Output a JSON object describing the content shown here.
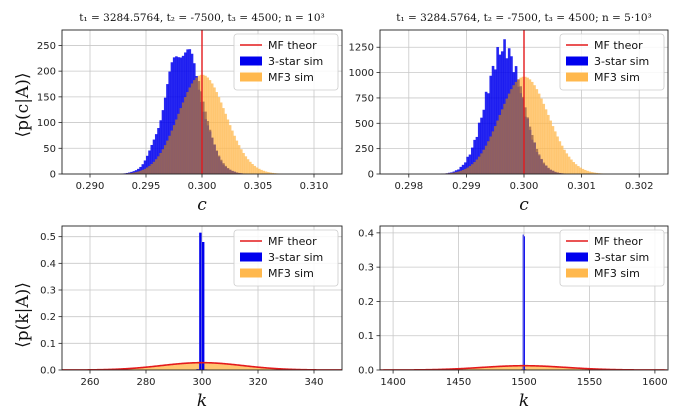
{
  "y_labels": {
    "top": "⟨p(c|A)⟩",
    "bottom": "⟨p(k|A)⟩"
  },
  "colors": {
    "theor": "#e41a1c",
    "sim3": "#0000ee",
    "mf3": "#ffb84d",
    "grid": "#c8c8c8"
  },
  "legend_labels": [
    "MF theor",
    "3-star sim",
    "MF3 sim"
  ],
  "chart_data": [
    {
      "type": "bar",
      "title": "t₁ = 3284.5764,  t₂ = -7500,  t₃ = 4500;  n = 10³",
      "xlabel": "c",
      "ylabel": "⟨p(c|A)⟩",
      "xlim": [
        0.2875,
        0.3125
      ],
      "ylim": [
        0,
        280
      ],
      "xticks": [
        0.29,
        0.295,
        0.3,
        0.305,
        0.31
      ],
      "xtick_labels": [
        "0.290",
        "0.295",
        "0.300",
        "0.305",
        "0.310"
      ],
      "yticks": [
        0,
        50,
        100,
        150,
        200,
        250
      ],
      "ytick_labels": [
        "0",
        "50",
        "100",
        "150",
        "200",
        "250"
      ],
      "grid": true,
      "legend_position": "top-right",
      "series": [
        {
          "name": "MF theor",
          "kind": "vline",
          "x": 0.3
        },
        {
          "name": "3-star sim",
          "kind": "dist",
          "mean": 0.2983,
          "sd": 0.0016,
          "peak": 265,
          "bin": 0.0002
        },
        {
          "name": "MF3 sim",
          "kind": "dist",
          "mean": 0.3,
          "sd": 0.0021,
          "peak": 193,
          "bin": 0.0002
        }
      ]
    },
    {
      "type": "bar",
      "title": "t₁ = 3284.5764,  t₂ = -7500,  t₃ = 4500;  n = 5·10³",
      "xlabel": "c",
      "ylabel": "",
      "xlim": [
        0.2975,
        0.3025
      ],
      "ylim": [
        0,
        1420
      ],
      "xticks": [
        0.298,
        0.299,
        0.3,
        0.301,
        0.302
      ],
      "xtick_labels": [
        "0.298",
        "0.299",
        "0.300",
        "0.301",
        "0.302"
      ],
      "yticks": [
        0,
        250,
        500,
        750,
        1000,
        1250
      ],
      "ytick_labels": [
        "0",
        "250",
        "500",
        "750",
        "1000",
        "1250"
      ],
      "grid": true,
      "legend_position": "top-right",
      "series": [
        {
          "name": "MF theor",
          "kind": "vline",
          "x": 0.3
        },
        {
          "name": "3-star sim",
          "kind": "dist",
          "mean": 0.29965,
          "sd": 0.00031,
          "peak": 1340,
          "bin": 4e-05
        },
        {
          "name": "MF3 sim",
          "kind": "dist",
          "mean": 0.3,
          "sd": 0.00042,
          "peak": 960,
          "bin": 4e-05
        }
      ]
    },
    {
      "type": "bar",
      "title": "",
      "xlabel": "k",
      "ylabel": "⟨p(k|A)⟩",
      "xlim": [
        250,
        350
      ],
      "ylim": [
        0,
        0.54
      ],
      "xticks": [
        260,
        280,
        300,
        320,
        340
      ],
      "xtick_labels": [
        "260",
        "280",
        "300",
        "320",
        "340"
      ],
      "yticks": [
        0,
        0.1,
        0.2,
        0.3,
        0.4,
        0.5
      ],
      "ytick_labels": [
        "0.0",
        "0.1",
        "0.2",
        "0.3",
        "0.4",
        "0.5"
      ],
      "grid": true,
      "legend_position": "top-right",
      "series": [
        {
          "name": "MF theor",
          "kind": "curve",
          "mean": 300,
          "sd": 14.5,
          "peak": 0.0275
        },
        {
          "name": "3-star sim",
          "kind": "bars",
          "x": [
            298,
            299,
            300,
            301
          ],
          "values": [
            0.003,
            0.515,
            0.48,
            0.002
          ],
          "width": 1
        },
        {
          "name": "MF3 sim",
          "kind": "dist",
          "mean": 300,
          "sd": 14.5,
          "peak": 0.0275,
          "bin": 1
        }
      ]
    },
    {
      "type": "bar",
      "title": "",
      "xlabel": "k",
      "ylabel": "",
      "xlim": [
        1390,
        1610
      ],
      "ylim": [
        0,
        0.42
      ],
      "xticks": [
        1400,
        1450,
        1500,
        1550,
        1600
      ],
      "xtick_labels": [
        "1400",
        "1450",
        "1500",
        "1550",
        "1600"
      ],
      "yticks": [
        0,
        0.1,
        0.2,
        0.3,
        0.4
      ],
      "ytick_labels": [
        "0.0",
        "0.1",
        "0.2",
        "0.3",
        "0.4"
      ],
      "grid": true,
      "legend_position": "top-right",
      "series": [
        {
          "name": "MF theor",
          "kind": "curve",
          "mean": 1500,
          "sd": 32,
          "peak": 0.0125
        },
        {
          "name": "3-star sim",
          "kind": "bars",
          "x": [
            1498,
            1499,
            1500,
            1501
          ],
          "values": [
            0.002,
            0.395,
            0.39,
            0.002
          ],
          "width": 1
        },
        {
          "name": "MF3 sim",
          "kind": "dist",
          "mean": 1500,
          "sd": 32,
          "peak": 0.0125,
          "bin": 1
        }
      ]
    }
  ]
}
